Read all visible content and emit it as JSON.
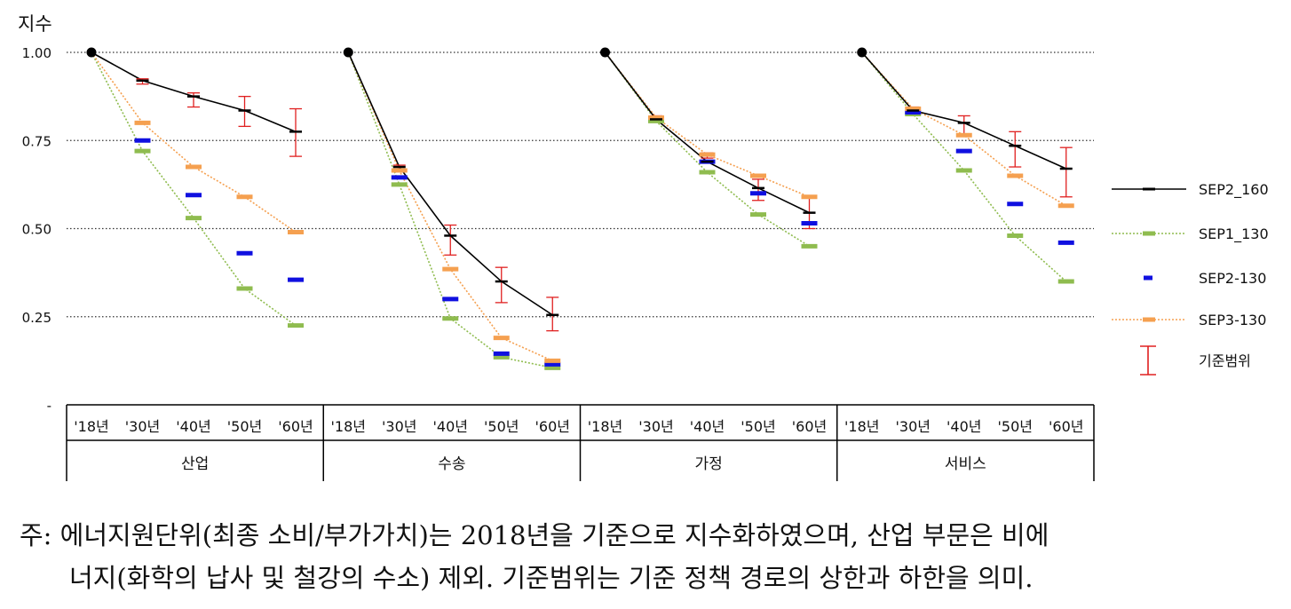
{
  "chart_data": {
    "type": "line",
    "ylabel": "지수",
    "ylim": [
      0,
      1
    ],
    "yticks": [
      {
        "value": 1.0,
        "label": "1.00"
      },
      {
        "value": 0.75,
        "label": "0.75"
      },
      {
        "value": 0.5,
        "label": "0.50"
      },
      {
        "value": 0.25,
        "label": "0.25"
      },
      {
        "value": 0.0,
        "label": "-"
      }
    ],
    "grid": "dotted horizontal",
    "legend_position": "right",
    "x_ticks": [
      "'18년",
      "'30년",
      "'40년",
      "'50년",
      "'60년"
    ],
    "groups": [
      {
        "name": "산업",
        "SEP2_160": [
          1.0,
          0.92,
          0.875,
          0.835,
          0.775
        ],
        "SEP1_130": [
          1.0,
          0.72,
          0.53,
          0.33,
          0.225
        ],
        "SEP2-130": [
          1.0,
          0.75,
          0.595,
          0.43,
          0.355
        ],
        "SEP3-130": [
          1.0,
          0.8,
          0.675,
          0.59,
          0.49
        ],
        "range": [
          null,
          [
            0.91,
            0.925
          ],
          [
            0.845,
            0.885
          ],
          [
            0.79,
            0.875
          ],
          [
            0.705,
            0.84
          ]
        ]
      },
      {
        "name": "수송",
        "SEP2_160": [
          1.0,
          0.675,
          0.48,
          0.35,
          0.255
        ],
        "SEP1_130": [
          1.0,
          0.625,
          0.245,
          0.135,
          0.105
        ],
        "SEP2-130": [
          1.0,
          0.645,
          0.3,
          0.145,
          0.115
        ],
        "SEP3-130": [
          1.0,
          0.665,
          0.385,
          0.19,
          0.125
        ],
        "range": [
          null,
          [
            0.665,
            0.68
          ],
          [
            0.425,
            0.51
          ],
          [
            0.29,
            0.39
          ],
          [
            0.21,
            0.305
          ]
        ]
      },
      {
        "name": "가정",
        "SEP2_160": [
          1.0,
          0.81,
          0.69,
          0.615,
          0.545
        ],
        "SEP1_130": [
          1.0,
          0.805,
          0.66,
          0.54,
          0.45
        ],
        "SEP2-130": [
          1.0,
          0.815,
          0.69,
          0.6,
          0.515
        ],
        "SEP3-130": [
          1.0,
          0.815,
          0.71,
          0.65,
          0.59
        ],
        "range": [
          null,
          [
            0.805,
            0.82
          ],
          [
            0.7,
            0.715
          ],
          [
            0.58,
            0.64
          ],
          [
            0.5,
            0.59
          ]
        ]
      },
      {
        "name": "서비스",
        "SEP2_160": [
          1.0,
          0.835,
          0.8,
          0.735,
          0.67
        ],
        "SEP1_130": [
          1.0,
          0.825,
          0.665,
          0.48,
          0.35
        ],
        "SEP2-130": [
          1.0,
          0.83,
          0.72,
          0.57,
          0.46
        ],
        "SEP3-130": [
          1.0,
          0.84,
          0.765,
          0.65,
          0.565
        ],
        "range": [
          null,
          [
            0.825,
            0.845
          ],
          [
            0.765,
            0.82
          ],
          [
            0.675,
            0.775
          ],
          [
            0.59,
            0.73
          ]
        ]
      }
    ],
    "series": [
      {
        "name": "SEP2_160",
        "color": "#000000",
        "style": "solid"
      },
      {
        "name": "SEP1_130",
        "color": "#8fbc4f",
        "style": "dotted"
      },
      {
        "name": "SEP2-130",
        "color": "#1010e0",
        "style": "none"
      },
      {
        "name": "SEP3-130",
        "color": "#f5a050",
        "style": "dotted"
      }
    ],
    "range_legend": {
      "name": "기준범위",
      "color": "#e02020"
    }
  },
  "note": {
    "line1": "주: 에너지원단위(최종 소비/부가가치)는 2018년을 기준으로 지수화하였으며, 산업 부문은 비에",
    "line2": "너지(화학의 납사 및 철강의 수소) 제외. 기준범위는 기준 정책 경로의 상한과 하한을 의미."
  }
}
